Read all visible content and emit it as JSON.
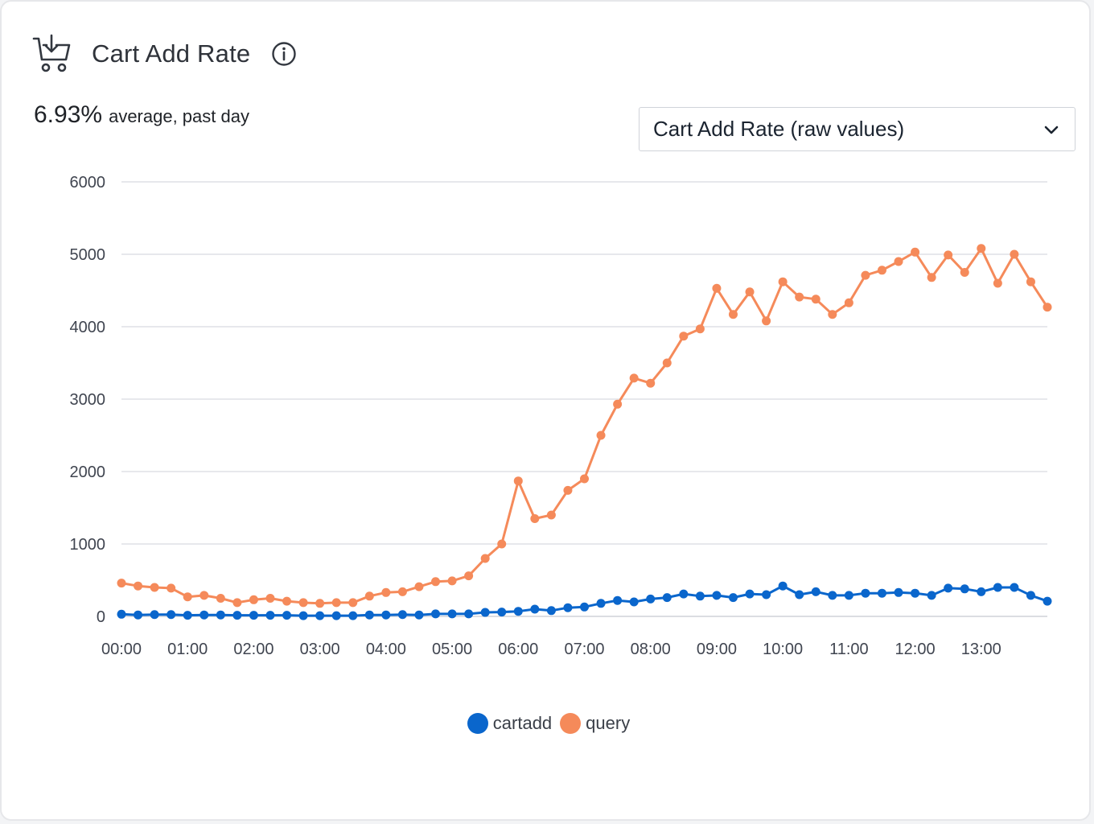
{
  "widget": {
    "title": "Cart Add Rate",
    "icon": "cart-download-icon",
    "info_icon": "info-icon",
    "summary_value": "6.93%",
    "summary_label": "average, past day",
    "metric_select": {
      "selected": "Cart Add Rate (raw values)",
      "icon": "chevron-down-icon"
    }
  },
  "colors": {
    "cartadd": "#0a66cc",
    "query": "#f58a5a",
    "grid": "#dfe1e5",
    "axis": "#cfd2d8"
  },
  "chart_data": {
    "type": "line",
    "title": "",
    "xlabel": "",
    "ylabel": "",
    "ylim": [
      0,
      6000
    ],
    "yticks": [
      0,
      1000,
      2000,
      3000,
      4000,
      5000,
      6000
    ],
    "xticks": [
      "00:00",
      "01:00",
      "02:00",
      "03:00",
      "04:00",
      "05:00",
      "06:00",
      "07:00",
      "08:00",
      "09:00",
      "10:00",
      "11:00",
      "12:00",
      "13:00"
    ],
    "grid": true,
    "legend_position": "bottom-center",
    "x": [
      "00:00",
      "00:15",
      "00:30",
      "00:45",
      "01:00",
      "01:15",
      "01:30",
      "01:45",
      "02:00",
      "02:15",
      "02:30",
      "02:45",
      "03:00",
      "03:15",
      "03:30",
      "03:45",
      "04:00",
      "04:15",
      "04:30",
      "04:45",
      "05:00",
      "05:15",
      "05:30",
      "05:45",
      "06:00",
      "06:15",
      "06:30",
      "06:45",
      "07:00",
      "07:15",
      "07:30",
      "07:45",
      "08:00",
      "08:15",
      "08:30",
      "08:45",
      "09:00",
      "09:15",
      "09:30",
      "09:45",
      "10:00",
      "10:15",
      "10:30",
      "10:45",
      "11:00",
      "11:15",
      "11:30",
      "11:45",
      "12:00",
      "12:15",
      "12:30",
      "12:45",
      "13:00",
      "13:15",
      "13:30",
      "13:45",
      "14:00"
    ],
    "series": [
      {
        "name": "cartadd",
        "values": [
          30,
          20,
          25,
          25,
          15,
          20,
          20,
          15,
          15,
          15,
          15,
          10,
          10,
          10,
          10,
          20,
          20,
          25,
          20,
          35,
          35,
          35,
          55,
          60,
          70,
          100,
          80,
          120,
          130,
          180,
          220,
          200,
          240,
          260,
          310,
          280,
          290,
          260,
          310,
          300,
          420,
          300,
          340,
          290,
          290,
          320,
          320,
          330,
          320,
          290,
          390,
          380,
          340,
          400,
          400,
          290,
          210
        ]
      },
      {
        "name": "query",
        "values": [
          460,
          420,
          400,
          390,
          270,
          290,
          250,
          190,
          230,
          250,
          210,
          190,
          180,
          190,
          190,
          280,
          330,
          340,
          410,
          480,
          490,
          560,
          800,
          1000,
          1870,
          1350,
          1400,
          1740,
          1900,
          2500,
          2930,
          3290,
          3220,
          3500,
          3870,
          3970,
          4530,
          4170,
          4480,
          4080,
          4620,
          4410,
          4380,
          4170,
          4330,
          4710,
          4780,
          4900,
          5030,
          4680,
          4990,
          4750,
          5080,
          4600,
          5000,
          4620,
          4270
        ]
      }
    ]
  }
}
